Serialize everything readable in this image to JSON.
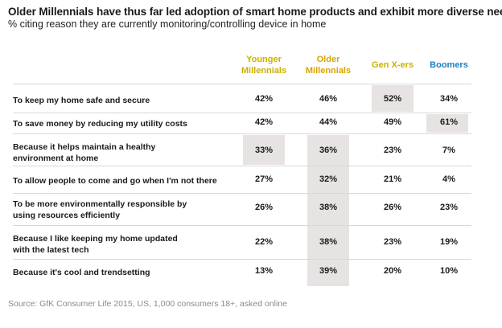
{
  "title": "Older Millennials have thus far led adoption of smart home products and exhibit more diverse needs",
  "subtitle": "% citing reason they are currently monitoring/controlling device in home",
  "source": "Source: GfK Consumer Life 2015, US, 1,000 consumers 18+, asked online",
  "colors": {
    "younger_millennials": "#c9b100",
    "older_millennials": "#d9a400",
    "gen_x": "#c9b100",
    "boomers": "#1e7fc2",
    "highlight": "#e8e3e3"
  },
  "chart_data": {
    "type": "table",
    "title": "Older Millennials have thus far led adoption of smart home products and exhibit more diverse needs",
    "subtitle": "% citing reason they are currently monitoring/controlling device in home",
    "columns": [
      {
        "name": "Younger Millennials",
        "line1": "Younger",
        "line2": "Millennials",
        "color": "#c9b100"
      },
      {
        "name": "Older Millennials",
        "line1": "Older",
        "line2": "Millennials",
        "color": "#d9a400"
      },
      {
        "name": "Gen X-ers",
        "line1": "Gen X-ers",
        "line2": "",
        "color": "#c9b100"
      },
      {
        "name": "Boomers",
        "line1": "Boomers",
        "line2": "",
        "color": "#1e7fc2"
      }
    ],
    "rows": [
      {
        "line1": "To keep my home safe and secure",
        "line2": "",
        "values": [
          "42%",
          "46%",
          "52%",
          "34%"
        ]
      },
      {
        "line1": "To save money by reducing my utility costs",
        "line2": "",
        "values": [
          "42%",
          "44%",
          "49%",
          "61%"
        ]
      },
      {
        "line1": "Because it helps maintain a healthy",
        "line2": "environment at home",
        "values": [
          "33%",
          "36%",
          "23%",
          "7%"
        ]
      },
      {
        "line1": "To allow people to come and go when I'm not there",
        "line2": "",
        "values": [
          "27%",
          "32%",
          "21%",
          "4%"
        ]
      },
      {
        "line1": "To be more environmentally responsible by",
        "line2": "using resources efficiently",
        "values": [
          "26%",
          "38%",
          "26%",
          "23%"
        ]
      },
      {
        "line1": "Because I like keeping my home updated",
        "line2": "with the latest tech",
        "values": [
          "22%",
          "38%",
          "23%",
          "19%"
        ]
      },
      {
        "line1": "Because it's cool and trendsetting",
        "line2": "",
        "values": [
          "13%",
          "39%",
          "20%",
          "10%"
        ]
      }
    ],
    "highlighted_cells": [
      [
        0,
        2
      ],
      [
        1,
        3
      ],
      [
        2,
        0
      ]
    ],
    "highlighted_column_from_row": {
      "column": 1,
      "from_row": 2
    }
  }
}
